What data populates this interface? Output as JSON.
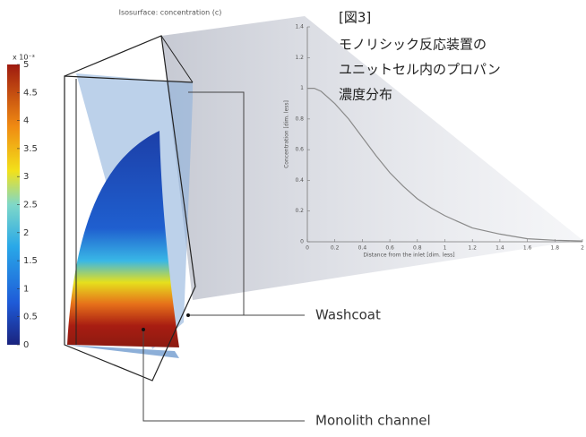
{
  "chart_data": [
    {
      "type": "line",
      "xlabel": "Distance from the inlet [dim. less]",
      "ylabel": "Concentration [dim. less]",
      "x": [
        0,
        0.05,
        0.1,
        0.2,
        0.3,
        0.4,
        0.5,
        0.6,
        0.7,
        0.8,
        0.9,
        1.0,
        1.2,
        1.4,
        1.6,
        1.8,
        2.0
      ],
      "values": [
        1,
        1,
        0.98,
        0.9,
        0.8,
        0.68,
        0.56,
        0.45,
        0.36,
        0.28,
        0.22,
        0.17,
        0.09,
        0.05,
        0.02,
        0.01,
        0.005
      ],
      "color": "#8a8a8a",
      "xlim": [
        0,
        2
      ],
      "xticks": [
        0,
        0.2,
        0.4,
        0.6,
        0.8,
        1,
        1.2,
        1.4,
        1.6,
        1.8,
        2
      ],
      "ylim": [
        0,
        1.4
      ],
      "yticks": [
        0,
        0.2,
        0.4,
        0.6,
        0.8,
        1,
        1.2,
        1.4
      ]
    },
    {
      "type": "colorbar",
      "title": "Isosurface: concentration (c)",
      "scale_label": "x 10⁻³",
      "ylim": [
        0,
        5
      ],
      "yticks": [
        0,
        0.5,
        1,
        1.5,
        2,
        2.5,
        3,
        3.5,
        4,
        4.5,
        5
      ]
    }
  ],
  "figure": {
    "caption": [
      "[図3]",
      "モノリシック反応装置の",
      "ユニットセル内のプロパン",
      "濃度分布"
    ],
    "callouts": [
      "Washcoat",
      "Monolith channel"
    ]
  }
}
